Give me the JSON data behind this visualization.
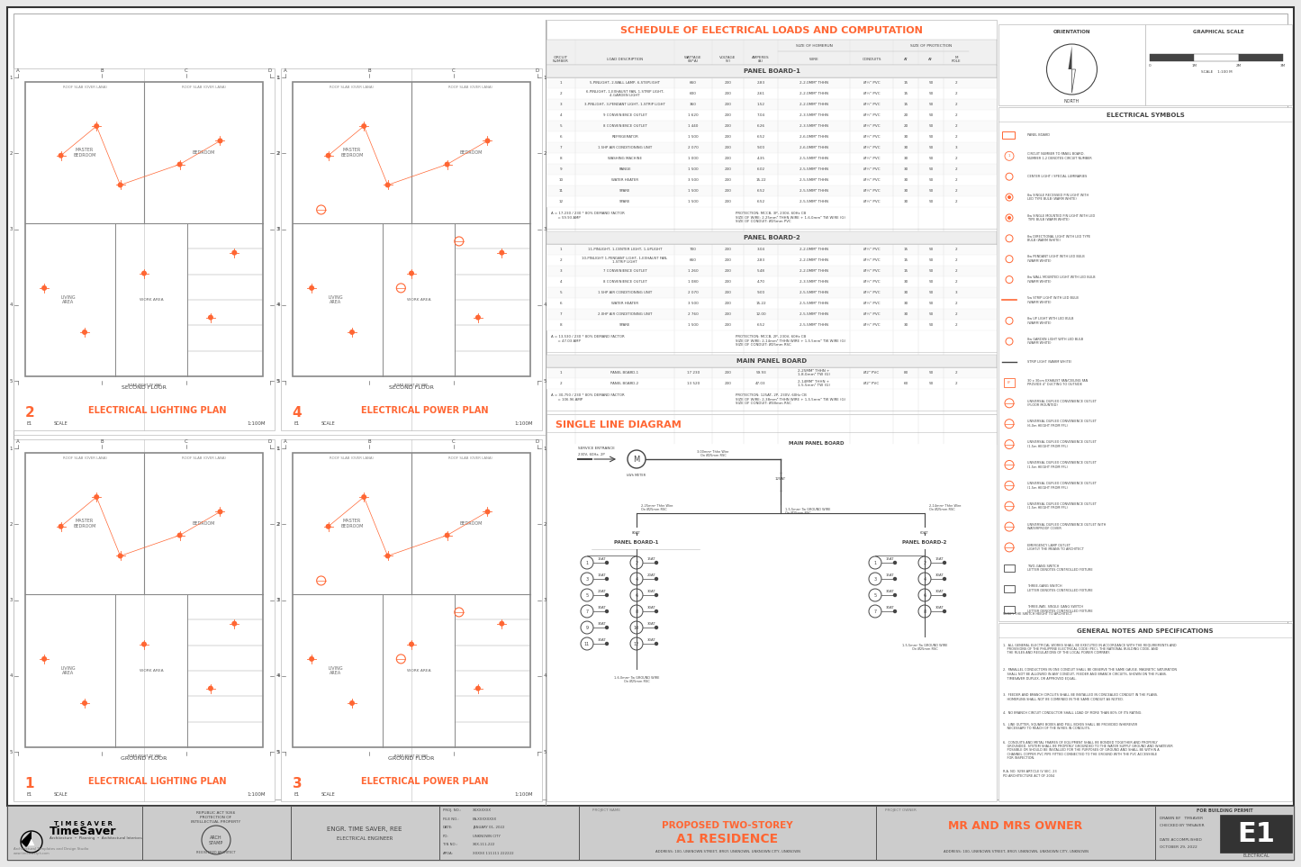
{
  "bg_color": "#e8e8e8",
  "orange": "#FF6633",
  "dark_gray": "#444444",
  "mid_gray": "#777777",
  "light_gray": "#bbbbbb",
  "white": "#ffffff",
  "black": "#000000",
  "gray_bg": "#cccccc",
  "panel_bg": "#f5f5f5"
}
